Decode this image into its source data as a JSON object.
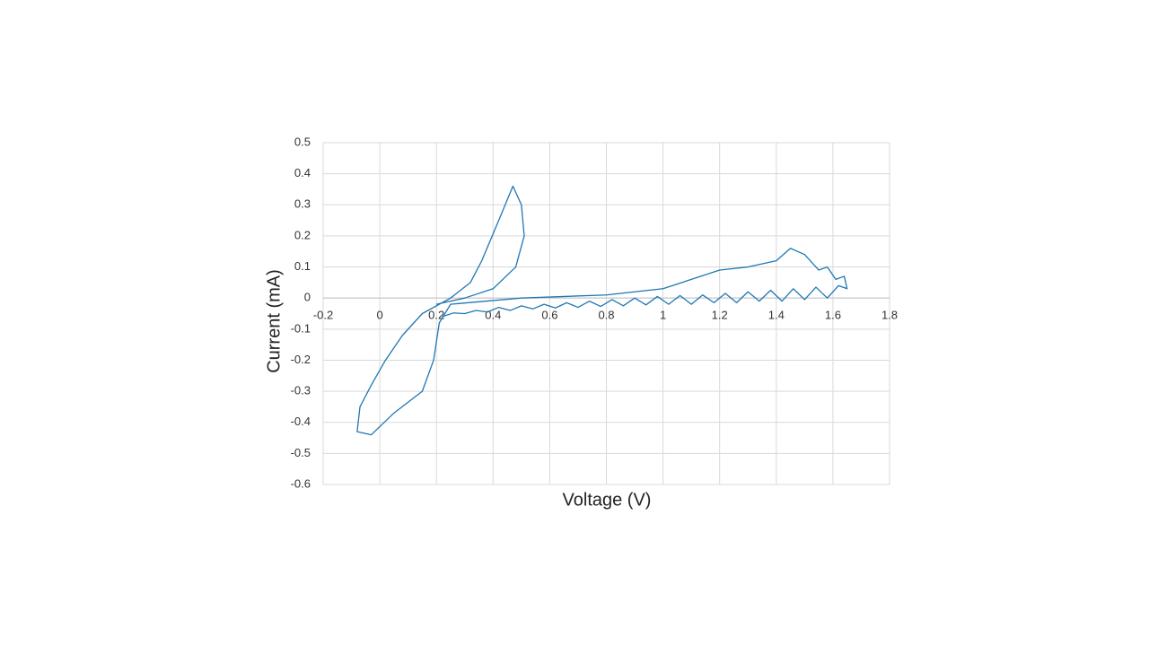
{
  "chart_data": {
    "type": "line",
    "x_label": "Voltage (V)",
    "y_label": "Current (mA)",
    "series": [
      {
        "color": "#1f77b4",
        "x": [
          0.2,
          0.3,
          0.4,
          0.48,
          0.51,
          0.5,
          0.47,
          0.42,
          0.36,
          0.32,
          0.25,
          0.15,
          0.08,
          0.02,
          -0.03,
          -0.07,
          -0.08,
          -0.03,
          0.05,
          0.15,
          0.19,
          0.21,
          0.25,
          0.5,
          0.8,
          1.0,
          1.1,
          1.2,
          1.3,
          1.4,
          1.45,
          1.5,
          1.55,
          1.58,
          1.61,
          1.64,
          1.65,
          1.62,
          1.58,
          1.54,
          1.5,
          1.46,
          1.42,
          1.38,
          1.34,
          1.3,
          1.26,
          1.22,
          1.18,
          1.14,
          1.1,
          1.06,
          1.02,
          0.98,
          0.94,
          0.9,
          0.86,
          0.82,
          0.78,
          0.74,
          0.7,
          0.66,
          0.62,
          0.58,
          0.54,
          0.5,
          0.46,
          0.42,
          0.38,
          0.34,
          0.3,
          0.26,
          0.22
        ],
        "values": [
          -0.02,
          0.0,
          0.03,
          0.1,
          0.2,
          0.3,
          0.36,
          0.25,
          0.12,
          0.05,
          0.0,
          -0.05,
          -0.12,
          -0.2,
          -0.28,
          -0.35,
          -0.43,
          -0.44,
          -0.37,
          -0.3,
          -0.2,
          -0.08,
          -0.02,
          0.0,
          0.01,
          0.03,
          0.06,
          0.09,
          0.1,
          0.12,
          0.16,
          0.14,
          0.09,
          0.1,
          0.06,
          0.07,
          0.03,
          0.04,
          0.0,
          0.035,
          -0.005,
          0.03,
          -0.01,
          0.025,
          -0.01,
          0.02,
          -0.015,
          0.015,
          -0.015,
          0.01,
          -0.02,
          0.008,
          -0.02,
          0.005,
          -0.022,
          0.0,
          -0.025,
          -0.005,
          -0.027,
          -0.01,
          -0.03,
          -0.015,
          -0.032,
          -0.02,
          -0.035,
          -0.025,
          -0.04,
          -0.03,
          -0.045,
          -0.04,
          -0.05,
          -0.048,
          -0.06
        ]
      }
    ],
    "xlim": [
      -0.2,
      1.8
    ],
    "xticks": [
      -0.2,
      0,
      0.2,
      0.4,
      0.6,
      0.8,
      1,
      1.2,
      1.4,
      1.6,
      1.8
    ],
    "ylim": [
      -0.6,
      0.5
    ],
    "yticks": [
      -0.6,
      -0.5,
      -0.4,
      -0.3,
      -0.2,
      -0.1,
      0,
      0.1,
      0.2,
      0.3,
      0.4,
      0.5
    ],
    "grid": true
  }
}
